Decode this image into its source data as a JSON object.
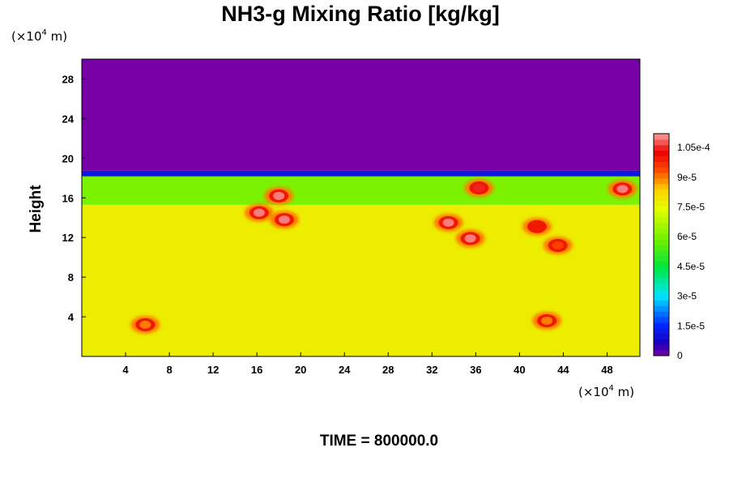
{
  "chart_data": {
    "type": "heatmap",
    "title": "NH3-g Mixing Ratio [kg/kg]",
    "ylabel": "Height",
    "x_unit": "m",
    "y_unit": "m",
    "x_scale_base": "×10",
    "x_scale_exp": "4",
    "y_scale_base": "×10",
    "y_scale_exp": "4",
    "xlim": [
      0,
      51
    ],
    "ylim": [
      0,
      30
    ],
    "x_ticks": [
      "4",
      "8",
      "12",
      "16",
      "20",
      "24",
      "28",
      "32",
      "36",
      "40",
      "44",
      "48"
    ],
    "y_ticks": [
      "4",
      "8",
      "12",
      "16",
      "20",
      "24",
      "28"
    ],
    "footer": "TIME = 800000.0",
    "colorbar": {
      "min": 0,
      "max": 0.000112,
      "tick_labels": [
        "0",
        "1.5e-5",
        "3e-5",
        "4.5e-5",
        "6e-5",
        "7.5e-5",
        "9e-5",
        "1.05e-4"
      ],
      "tick_values": [
        0,
        1.5e-05,
        3e-05,
        4.5e-05,
        6e-05,
        7.5e-05,
        9e-05,
        0.000105
      ]
    },
    "field_summary": {
      "upper_layer_value": 0,
      "upper_layer_base_height": 18.5,
      "lower_layer_value": 7.8e-05,
      "lower_layer_top_height": 15.3,
      "transition_layer_value": 6e-05,
      "high_concentration_cells": [
        {
          "x": 16.2,
          "y": 14.5,
          "value": 0.00011
        },
        {
          "x": 18.5,
          "y": 13.8,
          "value": 0.00011
        },
        {
          "x": 18.0,
          "y": 16.2,
          "value": 0.00011
        },
        {
          "x": 33.5,
          "y": 13.5,
          "value": 0.00011
        },
        {
          "x": 35.5,
          "y": 11.9,
          "value": 0.00011
        },
        {
          "x": 36.3,
          "y": 17.0,
          "value": 0.000105
        },
        {
          "x": 41.6,
          "y": 13.1,
          "value": 0.0001
        },
        {
          "x": 43.5,
          "y": 11.2,
          "value": 9.5e-05
        },
        {
          "x": 49.4,
          "y": 16.9,
          "value": 0.00011
        },
        {
          "x": 5.8,
          "y": 3.2,
          "value": 9e-05
        },
        {
          "x": 42.5,
          "y": 3.6,
          "value": 9e-05
        }
      ]
    }
  }
}
